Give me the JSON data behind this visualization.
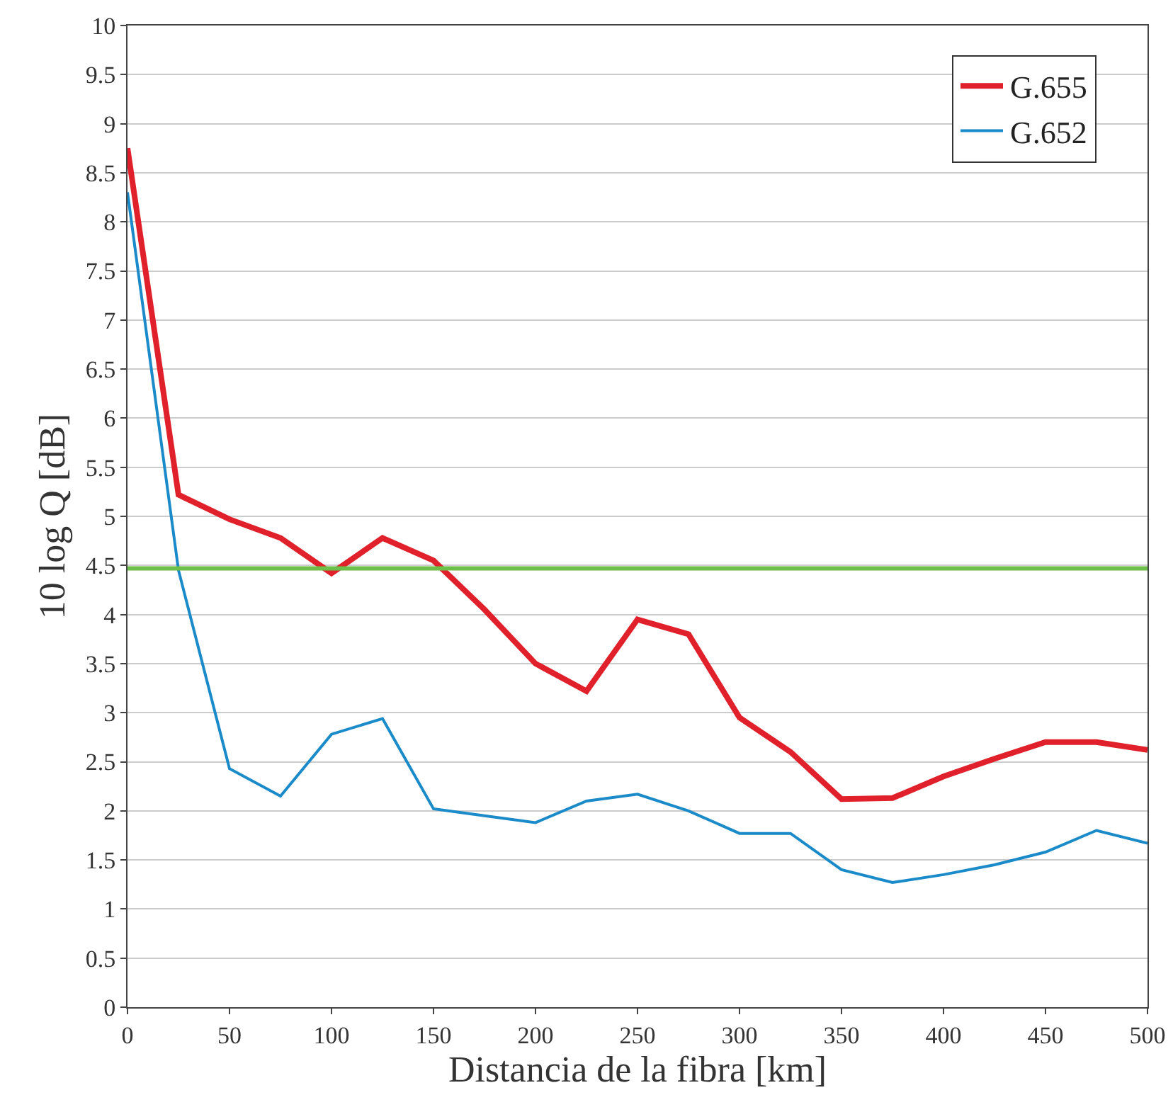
{
  "chart_data": {
    "type": "line",
    "xlabel": "Distancia de la fibra [km]",
    "ylabel": "10 log Q [dB]",
    "x": [
      0,
      25,
      50,
      75,
      100,
      125,
      150,
      175,
      200,
      225,
      250,
      275,
      300,
      325,
      350,
      375,
      400,
      425,
      450,
      475,
      500
    ],
    "series": [
      {
        "name": "G.655",
        "color": "#e0202a",
        "values": [
          8.75,
          5.22,
          4.97,
          4.78,
          4.42,
          4.78,
          4.55,
          4.05,
          3.5,
          3.22,
          3.95,
          3.8,
          2.95,
          2.6,
          2.12,
          2.13,
          2.35,
          2.53,
          2.7,
          2.7,
          2.62
        ]
      },
      {
        "name": "G.652",
        "color": "#1a8ac8",
        "values": [
          8.3,
          4.45,
          2.43,
          2.15,
          2.78,
          2.94,
          2.02,
          1.95,
          1.88,
          2.1,
          2.17,
          2.0,
          1.77,
          1.77,
          1.4,
          1.27,
          1.35,
          1.45,
          1.58,
          1.8,
          1.67
        ]
      }
    ],
    "xlim": [
      0,
      500
    ],
    "xticks": [
      0,
      50,
      100,
      150,
      200,
      250,
      300,
      350,
      400,
      450,
      500
    ],
    "ylim": [
      0,
      10
    ],
    "yticks": [
      0,
      0.5,
      1,
      1.5,
      2,
      2.5,
      3,
      3.5,
      4,
      4.5,
      5,
      5.5,
      6,
      6.5,
      7,
      7.5,
      8,
      8.5,
      9,
      9.5,
      10
    ],
    "ref_lines": [
      {
        "axis": "y",
        "value": 4.47,
        "color": "#6cc04a"
      }
    ],
    "grid": "y",
    "legend": "top right",
    "marker": "none",
    "line_style": "solid"
  }
}
